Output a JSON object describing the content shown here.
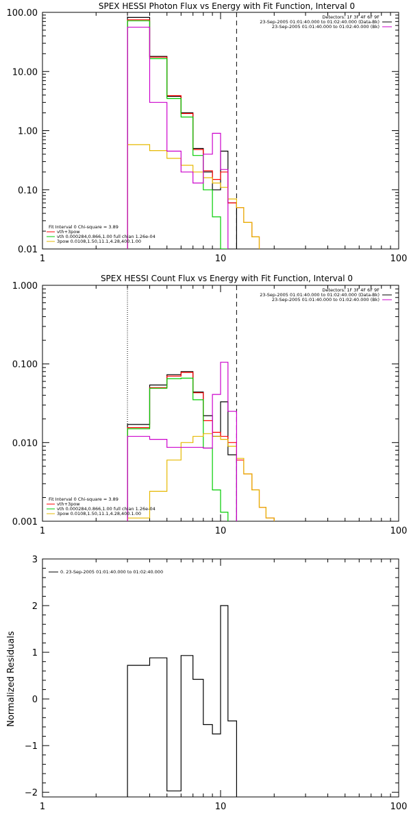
{
  "chart_data": [
    {
      "type": "line",
      "title": "SPEX HESSI Photon Flux vs Energy with Fit Function, Interval 0",
      "xlabel": "",
      "ylabel": "",
      "x_scale": "log",
      "y_scale": "log",
      "xlim": [
        1,
        100
      ],
      "ylim": [
        0.01,
        100
      ],
      "x_ticks": [
        1,
        10,
        100
      ],
      "x_tick_labels": [
        "1",
        "10",
        "100"
      ],
      "y_ticks": [
        0.01,
        0.1,
        1,
        10,
        100
      ],
      "y_tick_labels": [
        "0.01",
        "0.10",
        "1.00",
        "10.00",
        "100.00"
      ],
      "vlines": [
        {
          "x": 3,
          "style": "dotted"
        },
        {
          "x": 12.3,
          "style": "dashed"
        }
      ],
      "legend_top": [
        "Detectors: 1F 3F 4F 6F 9F",
        "23-Sep-2005 01:01:40.000 to 01:02:40.000 (Data-Bk)",
        "23-Sep-2005 01:01:40.000 to 01:02:40.000 (Bk)"
      ],
      "legend_bottom": [
        "Fit Interval 0   Chi-square = 3.89",
        "vth+3pow",
        "vth 0.000284,0.866,1.00  full chian 1.26e-04",
        "3pow 0.0108,1.50,11.1,4.28,400.1.00"
      ],
      "legend_bottom_colors": [
        "#000000",
        "#ff0000",
        "#00cc00",
        "#e6b800"
      ],
      "legend_top_colors": [
        "#000000",
        "#000000",
        "#cc00cc"
      ],
      "bin_edges": [
        3,
        4,
        5,
        6,
        7,
        8,
        9,
        10,
        11,
        12.3,
        13.5,
        15,
        16.5,
        18
      ],
      "series": [
        {
          "color": "#000000",
          "values": [
            82,
            18,
            3.8,
            2.0,
            0.5,
            0.2,
            0.1,
            0.45,
            0.06,
            null,
            null,
            null,
            null
          ]
        },
        {
          "color": "#ff0000",
          "values": [
            75,
            17.5,
            3.9,
            1.95,
            0.48,
            0.21,
            0.15,
            0.2,
            0.06,
            0.05,
            0.028,
            0.016,
            null
          ]
        },
        {
          "color": "#00cc00",
          "values": [
            72,
            16.5,
            3.5,
            1.7,
            0.38,
            0.1,
            0.035,
            0.009,
            null,
            null,
            null,
            null,
            null
          ]
        },
        {
          "color": "#e6b800",
          "values": [
            0.58,
            0.46,
            0.34,
            0.26,
            0.2,
            0.16,
            0.13,
            0.11,
            0.07,
            0.05,
            0.028,
            0.016,
            null
          ]
        },
        {
          "color": "#cc00cc",
          "values": [
            56,
            3.0,
            0.45,
            0.2,
            0.13,
            0.4,
            0.9,
            0.22,
            null,
            null,
            null,
            null,
            null
          ]
        }
      ]
    },
    {
      "type": "line",
      "title": "SPEX HESSI Count Flux vs Energy with Fit Function, Interval 0",
      "xlabel": "",
      "ylabel": "",
      "x_scale": "log",
      "y_scale": "log",
      "xlim": [
        1,
        100
      ],
      "ylim": [
        0.001,
        1
      ],
      "x_ticks": [
        1,
        10,
        100
      ],
      "x_tick_labels": [
        "1",
        "10",
        "100"
      ],
      "y_ticks": [
        0.001,
        0.01,
        0.1,
        1
      ],
      "y_tick_labels": [
        "0.001",
        "0.010",
        "0.100",
        "1.000"
      ],
      "vlines": [
        {
          "x": 3,
          "style": "dotted"
        },
        {
          "x": 12.3,
          "style": "dashed"
        }
      ],
      "legend_top": [
        "Detectors: 1F 3F 4F 6F 9F",
        "23-Sep-2005 01:01:40.000 to 01:02:40.000 (Data-Bk)",
        "23-Sep-2005 01:01:40.000 to 01:02:40.000 (Bk)"
      ],
      "legend_bottom": [
        "Fit Interval 0   Chi-square = 3.89",
        "vth+3pow",
        "vth 0.000284,0.866,1.00  full chian 1.26e-04",
        "3pow 0.0108,1.50,11.1,4.28,400.1.00"
      ],
      "legend_bottom_colors": [
        "#000000",
        "#ff0000",
        "#00cc00",
        "#e6b800"
      ],
      "legend_top_colors": [
        "#000000",
        "#000000",
        "#cc00cc"
      ],
      "bin_edges": [
        3,
        4,
        5,
        6,
        7,
        8,
        9,
        10,
        11,
        12.3,
        13.5,
        15,
        16.5,
        18,
        20
      ],
      "series": [
        {
          "color": "#000000",
          "values": [
            0.017,
            0.054,
            0.073,
            0.08,
            0.044,
            0.022,
            0.012,
            0.033,
            0.007,
            null,
            null,
            null,
            null,
            null
          ]
        },
        {
          "color": "#ff0000",
          "values": [
            0.0155,
            0.05,
            0.07,
            0.078,
            0.043,
            0.019,
            0.0135,
            0.012,
            0.01,
            0.006,
            0.004,
            0.0025,
            0.0015,
            0.0011
          ]
        },
        {
          "color": "#00cc00",
          "values": [
            0.015,
            0.049,
            0.065,
            0.066,
            0.035,
            0.0085,
            0.0025,
            0.0013,
            null,
            null,
            null,
            null,
            null,
            null
          ]
        },
        {
          "color": "#e6b800",
          "values": [
            0.0011,
            0.0024,
            0.006,
            0.01,
            0.012,
            0.013,
            0.012,
            0.011,
            0.009,
            0.0063,
            0.004,
            0.0025,
            0.0015,
            0.0011
          ]
        },
        {
          "color": "#cc00cc",
          "values": [
            0.012,
            0.011,
            0.0087,
            0.0087,
            0.0087,
            0.0085,
            0.041,
            0.105,
            0.025,
            null,
            null,
            null,
            null,
            null
          ]
        }
      ]
    },
    {
      "type": "line",
      "title": "",
      "xlabel": "",
      "ylabel": "Normalized Residuals",
      "x_scale": "log",
      "y_scale": "linear",
      "xlim": [
        1,
        100
      ],
      "ylim": [
        -2.1,
        3
      ],
      "x_ticks": [
        1,
        10,
        100
      ],
      "x_tick_labels": [
        "1",
        "10",
        "100"
      ],
      "y_ticks": [
        -2,
        -1,
        0,
        1,
        2,
        3
      ],
      "y_tick_labels": [
        "−2",
        "−1",
        "0",
        "1",
        "2",
        "3"
      ],
      "legend_top_left": "0. 23-Sep-2005 01:01:40.000 to 01:02:40.000",
      "bin_edges": [
        3,
        4,
        5,
        6,
        7,
        8,
        9,
        10,
        11,
        12.3
      ],
      "series": [
        {
          "color": "#000000",
          "values": [
            0.72,
            0.88,
            -1.97,
            0.93,
            0.42,
            -0.55,
            -0.75,
            2.0,
            -0.47
          ]
        }
      ]
    }
  ]
}
